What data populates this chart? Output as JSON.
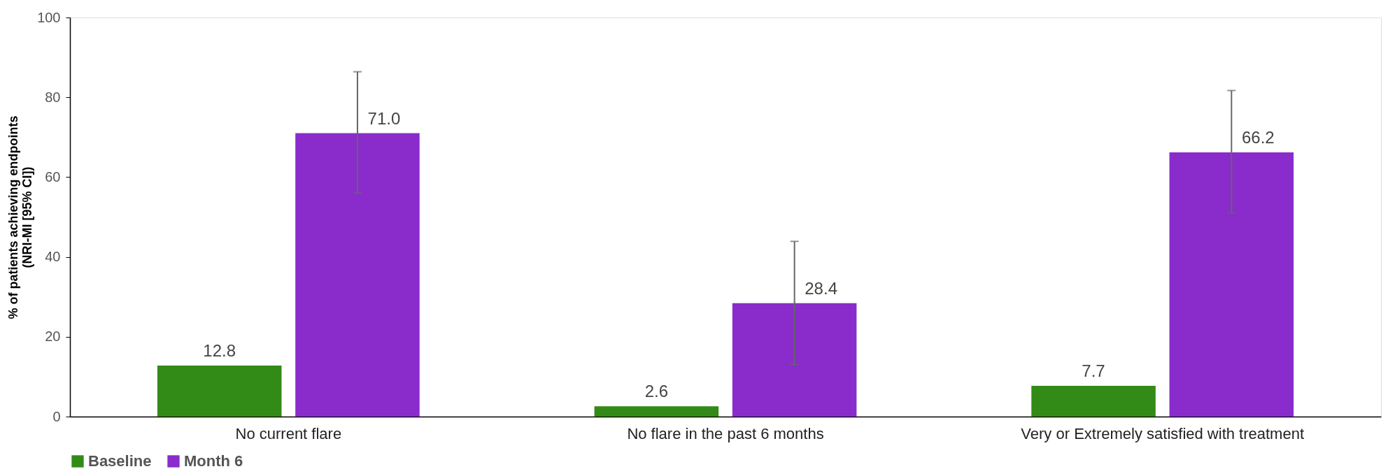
{
  "chart_data": {
    "type": "bar",
    "ylabel": "% of patients achieving endpoints\n(NRI-MI [95% CI])",
    "categories": [
      "No current flare",
      "No flare in the past 6 months",
      "Very or Extremely satisfied with treatment"
    ],
    "series": [
      {
        "name": "Baseline",
        "color": "#328a17",
        "values": [
          12.8,
          2.6,
          7.7
        ],
        "value_labels": [
          "12.8",
          "2.6",
          "7.7"
        ]
      },
      {
        "name": "Month 6",
        "color": "#8a2bcc",
        "values": [
          71.0,
          28.4,
          66.2
        ],
        "value_labels": [
          "71.0",
          "28.4",
          "66.2"
        ],
        "errors": [
          [
            56.0,
            86.4
          ],
          [
            13.0,
            43.9
          ],
          [
            51.0,
            81.7
          ]
        ]
      }
    ],
    "ylim": [
      0,
      100
    ],
    "yticks": [
      0,
      20,
      40,
      60,
      80,
      100
    ],
    "grid": false,
    "legend": "bottom"
  }
}
